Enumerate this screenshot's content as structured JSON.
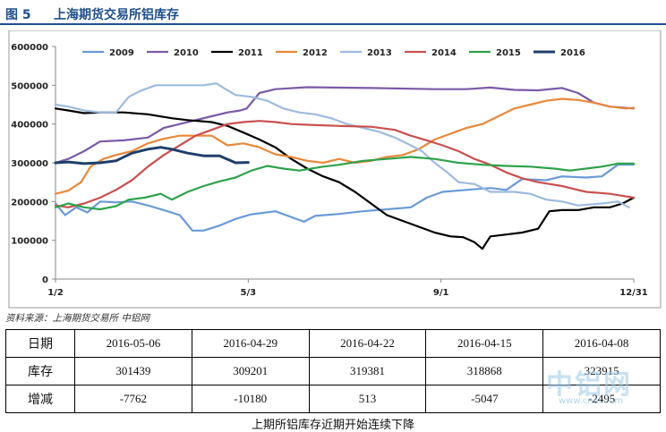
{
  "header": {
    "fig_no": "图 5",
    "title": "上海期货交易所铝库存"
  },
  "source": "资料来源：上海期货交易所   中铝网",
  "caption": "上期所铝库存近期开始连续下降",
  "watermark": {
    "main": "中铝网",
    "sub": "www.cnal.com"
  },
  "colors": {
    "2009": "#6a9ad6",
    "2010": "#7b5aa6",
    "2011": "#000000",
    "2012": "#e8883a",
    "2013": "#9dbbdf",
    "2014": "#c9504f",
    "2015": "#2ea24a",
    "2016": "#1f3f6a"
  },
  "table": {
    "rows": [
      {
        "label": "日期",
        "cells": [
          "2016-05-06",
          "2016-04-29",
          "2016-04-22",
          "2016-04-15",
          "2016-04-08"
        ]
      },
      {
        "label": "库存",
        "cells": [
          "301439",
          "309201",
          "319381",
          "318868",
          "323915"
        ]
      },
      {
        "label": "增减",
        "cells": [
          "-7762",
          "-10180",
          "513",
          "-5047",
          "-2495"
        ]
      }
    ]
  },
  "chart_data": {
    "type": "line",
    "title": "",
    "xlabel": "",
    "ylabel": "",
    "ylim": [
      0,
      600000
    ],
    "yticks": [
      "0",
      "100000",
      "200000",
      "300000",
      "400000",
      "500000",
      "600000"
    ],
    "xticks": [
      {
        "label": "1/2",
        "day": 2
      },
      {
        "label": "5/3",
        "day": 123
      },
      {
        "label": "9/1",
        "day": 244
      },
      {
        "label": "12/31",
        "day": 365
      }
    ],
    "xlim_day": [
      2,
      365
    ],
    "legend": "top",
    "series": [
      {
        "name": "2009",
        "points": [
          [
            2,
            195000
          ],
          [
            8,
            165000
          ],
          [
            15,
            185000
          ],
          [
            22,
            172000
          ],
          [
            30,
            200000
          ],
          [
            40,
            198000
          ],
          [
            50,
            200000
          ],
          [
            60,
            190000
          ],
          [
            70,
            178000
          ],
          [
            80,
            165000
          ],
          [
            88,
            125000
          ],
          [
            95,
            125000
          ],
          [
            105,
            138000
          ],
          [
            115,
            155000
          ],
          [
            125,
            167000
          ],
          [
            140,
            175000
          ],
          [
            150,
            160000
          ],
          [
            158,
            148000
          ],
          [
            165,
            163000
          ],
          [
            180,
            168000
          ],
          [
            195,
            175000
          ],
          [
            210,
            180000
          ],
          [
            225,
            185000
          ],
          [
            235,
            210000
          ],
          [
            245,
            225000
          ],
          [
            260,
            230000
          ],
          [
            275,
            235000
          ],
          [
            285,
            230000
          ],
          [
            295,
            258000
          ],
          [
            310,
            255000
          ],
          [
            320,
            265000
          ],
          [
            335,
            262000
          ],
          [
            345,
            265000
          ],
          [
            355,
            295000
          ],
          [
            365,
            295000
          ]
        ]
      },
      {
        "name": "2010",
        "points": [
          [
            2,
            300000
          ],
          [
            10,
            310000
          ],
          [
            20,
            330000
          ],
          [
            30,
            355000
          ],
          [
            45,
            358000
          ],
          [
            60,
            365000
          ],
          [
            70,
            390000
          ],
          [
            80,
            400000
          ],
          [
            90,
            410000
          ],
          [
            100,
            420000
          ],
          [
            110,
            430000
          ],
          [
            118,
            435000
          ],
          [
            122,
            440000
          ],
          [
            130,
            480000
          ],
          [
            140,
            490000
          ],
          [
            160,
            495000
          ],
          [
            200,
            493000
          ],
          [
            240,
            490000
          ],
          [
            260,
            490000
          ],
          [
            275,
            494000
          ],
          [
            290,
            488000
          ],
          [
            305,
            487000
          ],
          [
            320,
            493000
          ],
          [
            330,
            480000
          ],
          [
            340,
            455000
          ],
          [
            350,
            445000
          ],
          [
            365,
            440000
          ]
        ]
      },
      {
        "name": "2011",
        "points": [
          [
            2,
            440000
          ],
          [
            10,
            435000
          ],
          [
            20,
            428000
          ],
          [
            30,
            430000
          ],
          [
            45,
            430000
          ],
          [
            60,
            425000
          ],
          [
            75,
            415000
          ],
          [
            85,
            410000
          ],
          [
            100,
            405000
          ],
          [
            110,
            395000
          ],
          [
            120,
            378000
          ],
          [
            130,
            360000
          ],
          [
            140,
            340000
          ],
          [
            150,
            310000
          ],
          [
            160,
            285000
          ],
          [
            170,
            265000
          ],
          [
            180,
            250000
          ],
          [
            190,
            225000
          ],
          [
            200,
            195000
          ],
          [
            210,
            165000
          ],
          [
            220,
            150000
          ],
          [
            230,
            135000
          ],
          [
            240,
            120000
          ],
          [
            250,
            110000
          ],
          [
            258,
            108000
          ],
          [
            265,
            95000
          ],
          [
            270,
            78000
          ],
          [
            275,
            110000
          ],
          [
            285,
            115000
          ],
          [
            295,
            120000
          ],
          [
            305,
            130000
          ],
          [
            312,
            175000
          ],
          [
            320,
            178000
          ],
          [
            330,
            178000
          ],
          [
            340,
            185000
          ],
          [
            350,
            185000
          ],
          [
            358,
            195000
          ],
          [
            365,
            210000
          ]
        ]
      },
      {
        "name": "2012",
        "points": [
          [
            2,
            220000
          ],
          [
            10,
            228000
          ],
          [
            18,
            250000
          ],
          [
            24,
            290000
          ],
          [
            32,
            310000
          ],
          [
            40,
            320000
          ],
          [
            50,
            330000
          ],
          [
            60,
            350000
          ],
          [
            70,
            362000
          ],
          [
            80,
            370000
          ],
          [
            90,
            370000
          ],
          [
            100,
            370000
          ],
          [
            110,
            345000
          ],
          [
            120,
            350000
          ],
          [
            130,
            340000
          ],
          [
            140,
            322000
          ],
          [
            150,
            315000
          ],
          [
            160,
            305000
          ],
          [
            170,
            300000
          ],
          [
            180,
            310000
          ],
          [
            190,
            300000
          ],
          [
            200,
            305000
          ],
          [
            210,
            315000
          ],
          [
            220,
            320000
          ],
          [
            230,
            335000
          ],
          [
            240,
            360000
          ],
          [
            250,
            375000
          ],
          [
            260,
            390000
          ],
          [
            270,
            400000
          ],
          [
            280,
            420000
          ],
          [
            290,
            440000
          ],
          [
            300,
            450000
          ],
          [
            310,
            460000
          ],
          [
            320,
            465000
          ],
          [
            330,
            462000
          ],
          [
            340,
            455000
          ],
          [
            350,
            445000
          ],
          [
            360,
            440000
          ],
          [
            365,
            442000
          ]
        ]
      },
      {
        "name": "2013",
        "points": [
          [
            2,
            450000
          ],
          [
            10,
            445000
          ],
          [
            20,
            435000
          ],
          [
            30,
            430000
          ],
          [
            40,
            430000
          ],
          [
            48,
            470000
          ],
          [
            55,
            485000
          ],
          [
            65,
            500000
          ],
          [
            80,
            500000
          ],
          [
            95,
            500000
          ],
          [
            103,
            505000
          ],
          [
            108,
            492000
          ],
          [
            115,
            475000
          ],
          [
            125,
            470000
          ],
          [
            135,
            460000
          ],
          [
            145,
            440000
          ],
          [
            155,
            430000
          ],
          [
            165,
            425000
          ],
          [
            175,
            415000
          ],
          [
            185,
            400000
          ],
          [
            195,
            390000
          ],
          [
            205,
            380000
          ],
          [
            215,
            365000
          ],
          [
            225,
            345000
          ],
          [
            232,
            330000
          ],
          [
            240,
            300000
          ],
          [
            248,
            275000
          ],
          [
            255,
            250000
          ],
          [
            265,
            245000
          ],
          [
            275,
            225000
          ],
          [
            290,
            225000
          ],
          [
            300,
            220000
          ],
          [
            310,
            205000
          ],
          [
            320,
            200000
          ],
          [
            330,
            190000
          ],
          [
            345,
            195000
          ],
          [
            355,
            200000
          ],
          [
            362,
            185000
          ]
        ]
      },
      {
        "name": "2014",
        "points": [
          [
            2,
            190000
          ],
          [
            10,
            185000
          ],
          [
            20,
            195000
          ],
          [
            30,
            210000
          ],
          [
            40,
            230000
          ],
          [
            50,
            255000
          ],
          [
            60,
            290000
          ],
          [
            70,
            320000
          ],
          [
            80,
            345000
          ],
          [
            90,
            370000
          ],
          [
            100,
            385000
          ],
          [
            110,
            400000
          ],
          [
            120,
            405000
          ],
          [
            130,
            408000
          ],
          [
            140,
            405000
          ],
          [
            150,
            400000
          ],
          [
            160,
            398000
          ],
          [
            180,
            395000
          ],
          [
            200,
            393000
          ],
          [
            215,
            385000
          ],
          [
            225,
            370000
          ],
          [
            235,
            358000
          ],
          [
            245,
            345000
          ],
          [
            255,
            330000
          ],
          [
            265,
            310000
          ],
          [
            275,
            295000
          ],
          [
            285,
            275000
          ],
          [
            295,
            260000
          ],
          [
            305,
            250000
          ],
          [
            320,
            240000
          ],
          [
            335,
            225000
          ],
          [
            350,
            220000
          ],
          [
            365,
            210000
          ]
        ]
      },
      {
        "name": "2015",
        "points": [
          [
            2,
            185000
          ],
          [
            10,
            195000
          ],
          [
            20,
            185000
          ],
          [
            30,
            180000
          ],
          [
            40,
            188000
          ],
          [
            48,
            205000
          ],
          [
            58,
            210000
          ],
          [
            68,
            220000
          ],
          [
            75,
            205000
          ],
          [
            85,
            225000
          ],
          [
            95,
            240000
          ],
          [
            105,
            252000
          ],
          [
            115,
            262000
          ],
          [
            125,
            280000
          ],
          [
            135,
            292000
          ],
          [
            145,
            285000
          ],
          [
            155,
            280000
          ],
          [
            170,
            290000
          ],
          [
            180,
            295000
          ],
          [
            195,
            305000
          ],
          [
            210,
            310000
          ],
          [
            225,
            315000
          ],
          [
            240,
            310000
          ],
          [
            255,
            300000
          ],
          [
            270,
            295000
          ],
          [
            285,
            292000
          ],
          [
            300,
            290000
          ],
          [
            315,
            285000
          ],
          [
            325,
            280000
          ],
          [
            335,
            285000
          ],
          [
            345,
            290000
          ],
          [
            355,
            298000
          ],
          [
            365,
            298000
          ]
        ]
      },
      {
        "name": "2016",
        "points": [
          [
            2,
            300000
          ],
          [
            10,
            302000
          ],
          [
            20,
            298000
          ],
          [
            30,
            300000
          ],
          [
            40,
            305000
          ],
          [
            50,
            325000
          ],
          [
            60,
            335000
          ],
          [
            68,
            340000
          ],
          [
            75,
            335000
          ],
          [
            85,
            325000
          ],
          [
            95,
            318000
          ],
          [
            105,
            318000
          ],
          [
            115,
            300000
          ],
          [
            123,
            301000
          ]
        ]
      }
    ]
  }
}
